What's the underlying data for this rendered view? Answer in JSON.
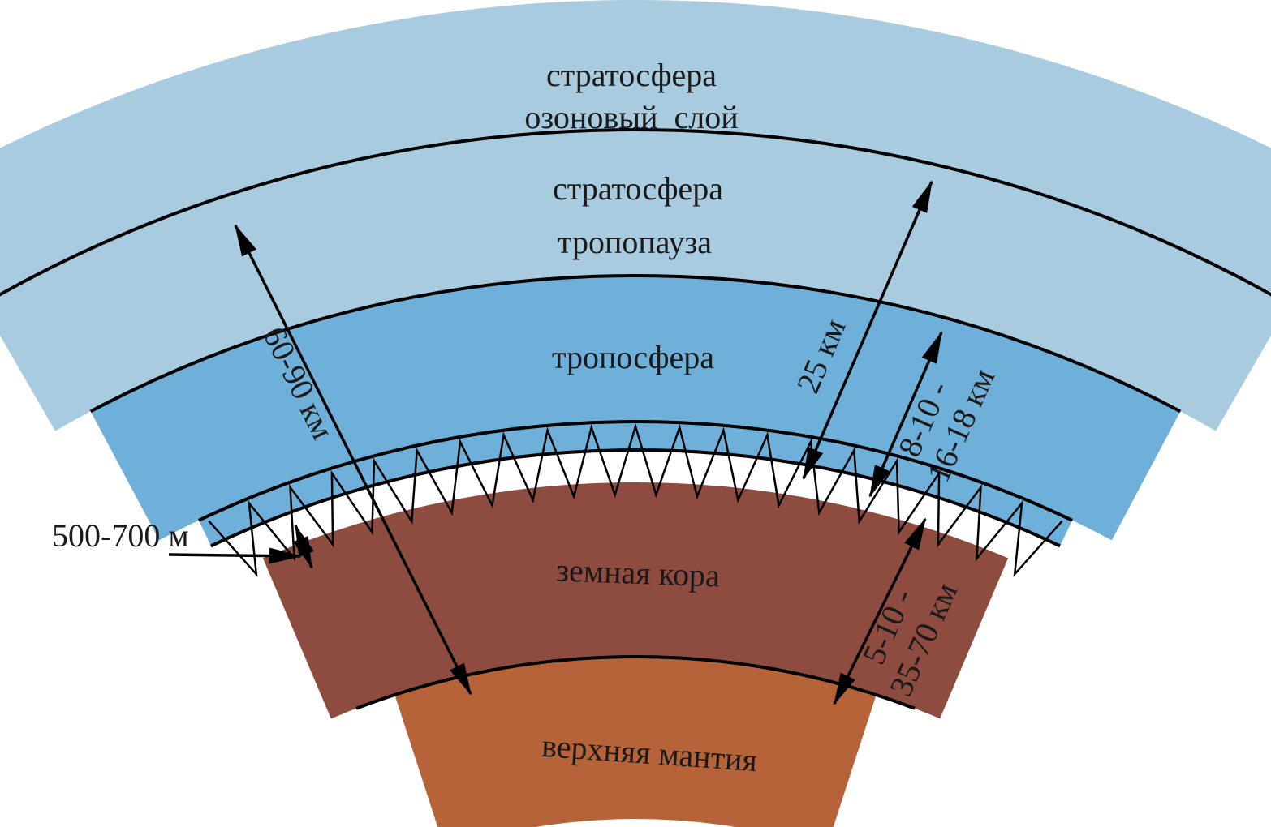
{
  "layers": {
    "upper_stratosphere": "стратосфера",
    "ozone_layer": "озоновый  слой",
    "stratosphere": "стратосфера",
    "tropopause": "тропопауза",
    "troposphere": "тропосфера",
    "earth_crust": "земная кора",
    "upper_mantle": "верхняя мантия"
  },
  "dimensions": {
    "total_thickness": "60-90 км",
    "ozone_height": "25 км",
    "troposphere_line1": "8-10 -",
    "troposphere_line2": "16-18 км",
    "crust_line1": "5-10 -",
    "crust_line2": "35-70 км",
    "biosphere_soil": "500-700 м"
  },
  "colors": {
    "stratosphere": "#a8cbe0",
    "troposphere": "#6fb0da",
    "crust": "#8e4b3f",
    "mantle": "#b7633a",
    "lines": "#000000"
  }
}
